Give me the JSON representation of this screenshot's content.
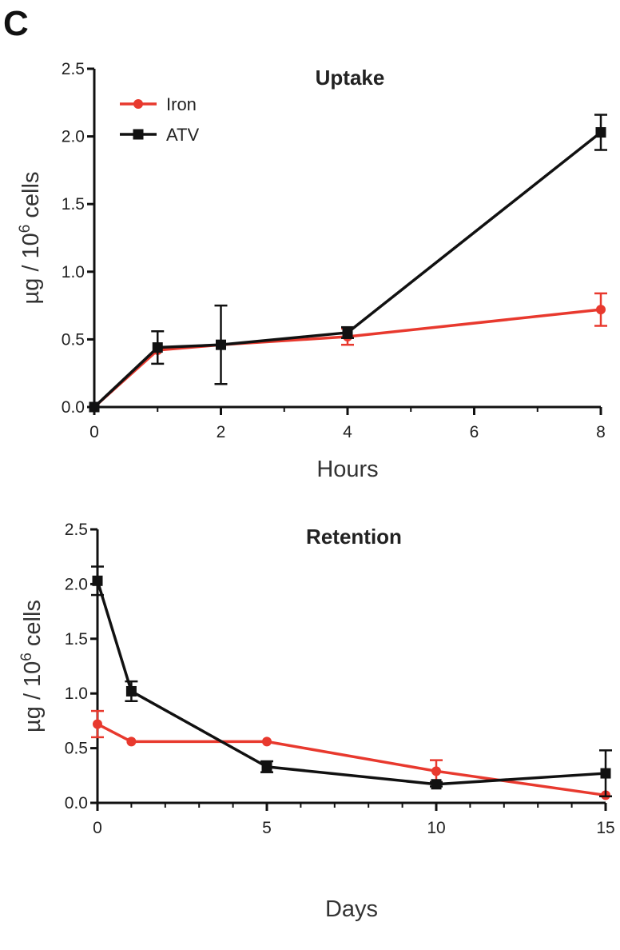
{
  "panel_label": "C",
  "colors": {
    "iron": "#e8392e",
    "atv": "#111111",
    "axis": "#111111"
  },
  "chart_data": [
    {
      "type": "line",
      "title": "Uptake",
      "xlabel": "Hours",
      "ylabel_main": "µg / 10",
      "ylabel_sup": "6",
      "ylabel_tail": " cells",
      "xlim": [
        0,
        8
      ],
      "ylim": [
        0,
        2.5
      ],
      "xticks": [
        0,
        2,
        4,
        6,
        8
      ],
      "xtick_labels": [
        "0",
        "2",
        "4",
        "6",
        "8"
      ],
      "xminor": [
        1,
        3,
        5,
        7
      ],
      "yticks": [
        0,
        0.5,
        1,
        1.5,
        2,
        2.5
      ],
      "ytick_labels": [
        "0.0",
        "0.5",
        "1.0",
        "1.5",
        "2.0",
        "2.5"
      ],
      "legend_position": "top-left",
      "series": [
        {
          "name": "Iron",
          "color": "#e8392e",
          "marker": "circle",
          "x": [
            0,
            1,
            2,
            4,
            8
          ],
          "y": [
            0,
            0.42,
            0.46,
            0.52,
            0.72
          ],
          "err": [
            0,
            0,
            0,
            0.06,
            0.12
          ]
        },
        {
          "name": "ATV",
          "color": "#111111",
          "marker": "square",
          "x": [
            0,
            1,
            2,
            4,
            8
          ],
          "y": [
            0,
            0.44,
            0.46,
            0.55,
            2.03
          ],
          "err": [
            0,
            0.12,
            0.29,
            0.04,
            0.13
          ]
        }
      ]
    },
    {
      "type": "line",
      "title": "Retention",
      "xlabel": "Days",
      "ylabel_main": "µg / 10",
      "ylabel_sup": "6",
      "ylabel_tail": " cells",
      "xlim": [
        0,
        15
      ],
      "ylim": [
        0,
        2.5
      ],
      "xticks": [
        0,
        5,
        10,
        15
      ],
      "xtick_labels": [
        "0",
        "5",
        "10",
        "15"
      ],
      "xminor": [
        1,
        2,
        3,
        4,
        6,
        7,
        8,
        9,
        11,
        12,
        13,
        14
      ],
      "yticks": [
        0,
        0.5,
        1,
        1.5,
        2,
        2.5
      ],
      "ytick_labels": [
        "0.0",
        "0.5",
        "1.0",
        "1.5",
        "2.0",
        "2.5"
      ],
      "series": [
        {
          "name": "Iron",
          "color": "#e8392e",
          "marker": "circle",
          "x": [
            0,
            1,
            5,
            10,
            15
          ],
          "y": [
            0.72,
            0.56,
            0.56,
            0.29,
            0.07
          ],
          "err": [
            0.12,
            0,
            0,
            0.1,
            0
          ]
        },
        {
          "name": "ATV",
          "color": "#111111",
          "marker": "square",
          "x": [
            0,
            1,
            5,
            10,
            15
          ],
          "y": [
            2.03,
            1.02,
            0.33,
            0.17,
            0.27
          ],
          "err": [
            0.13,
            0.09,
            0.05,
            0.02,
            0.21
          ]
        }
      ]
    }
  ]
}
